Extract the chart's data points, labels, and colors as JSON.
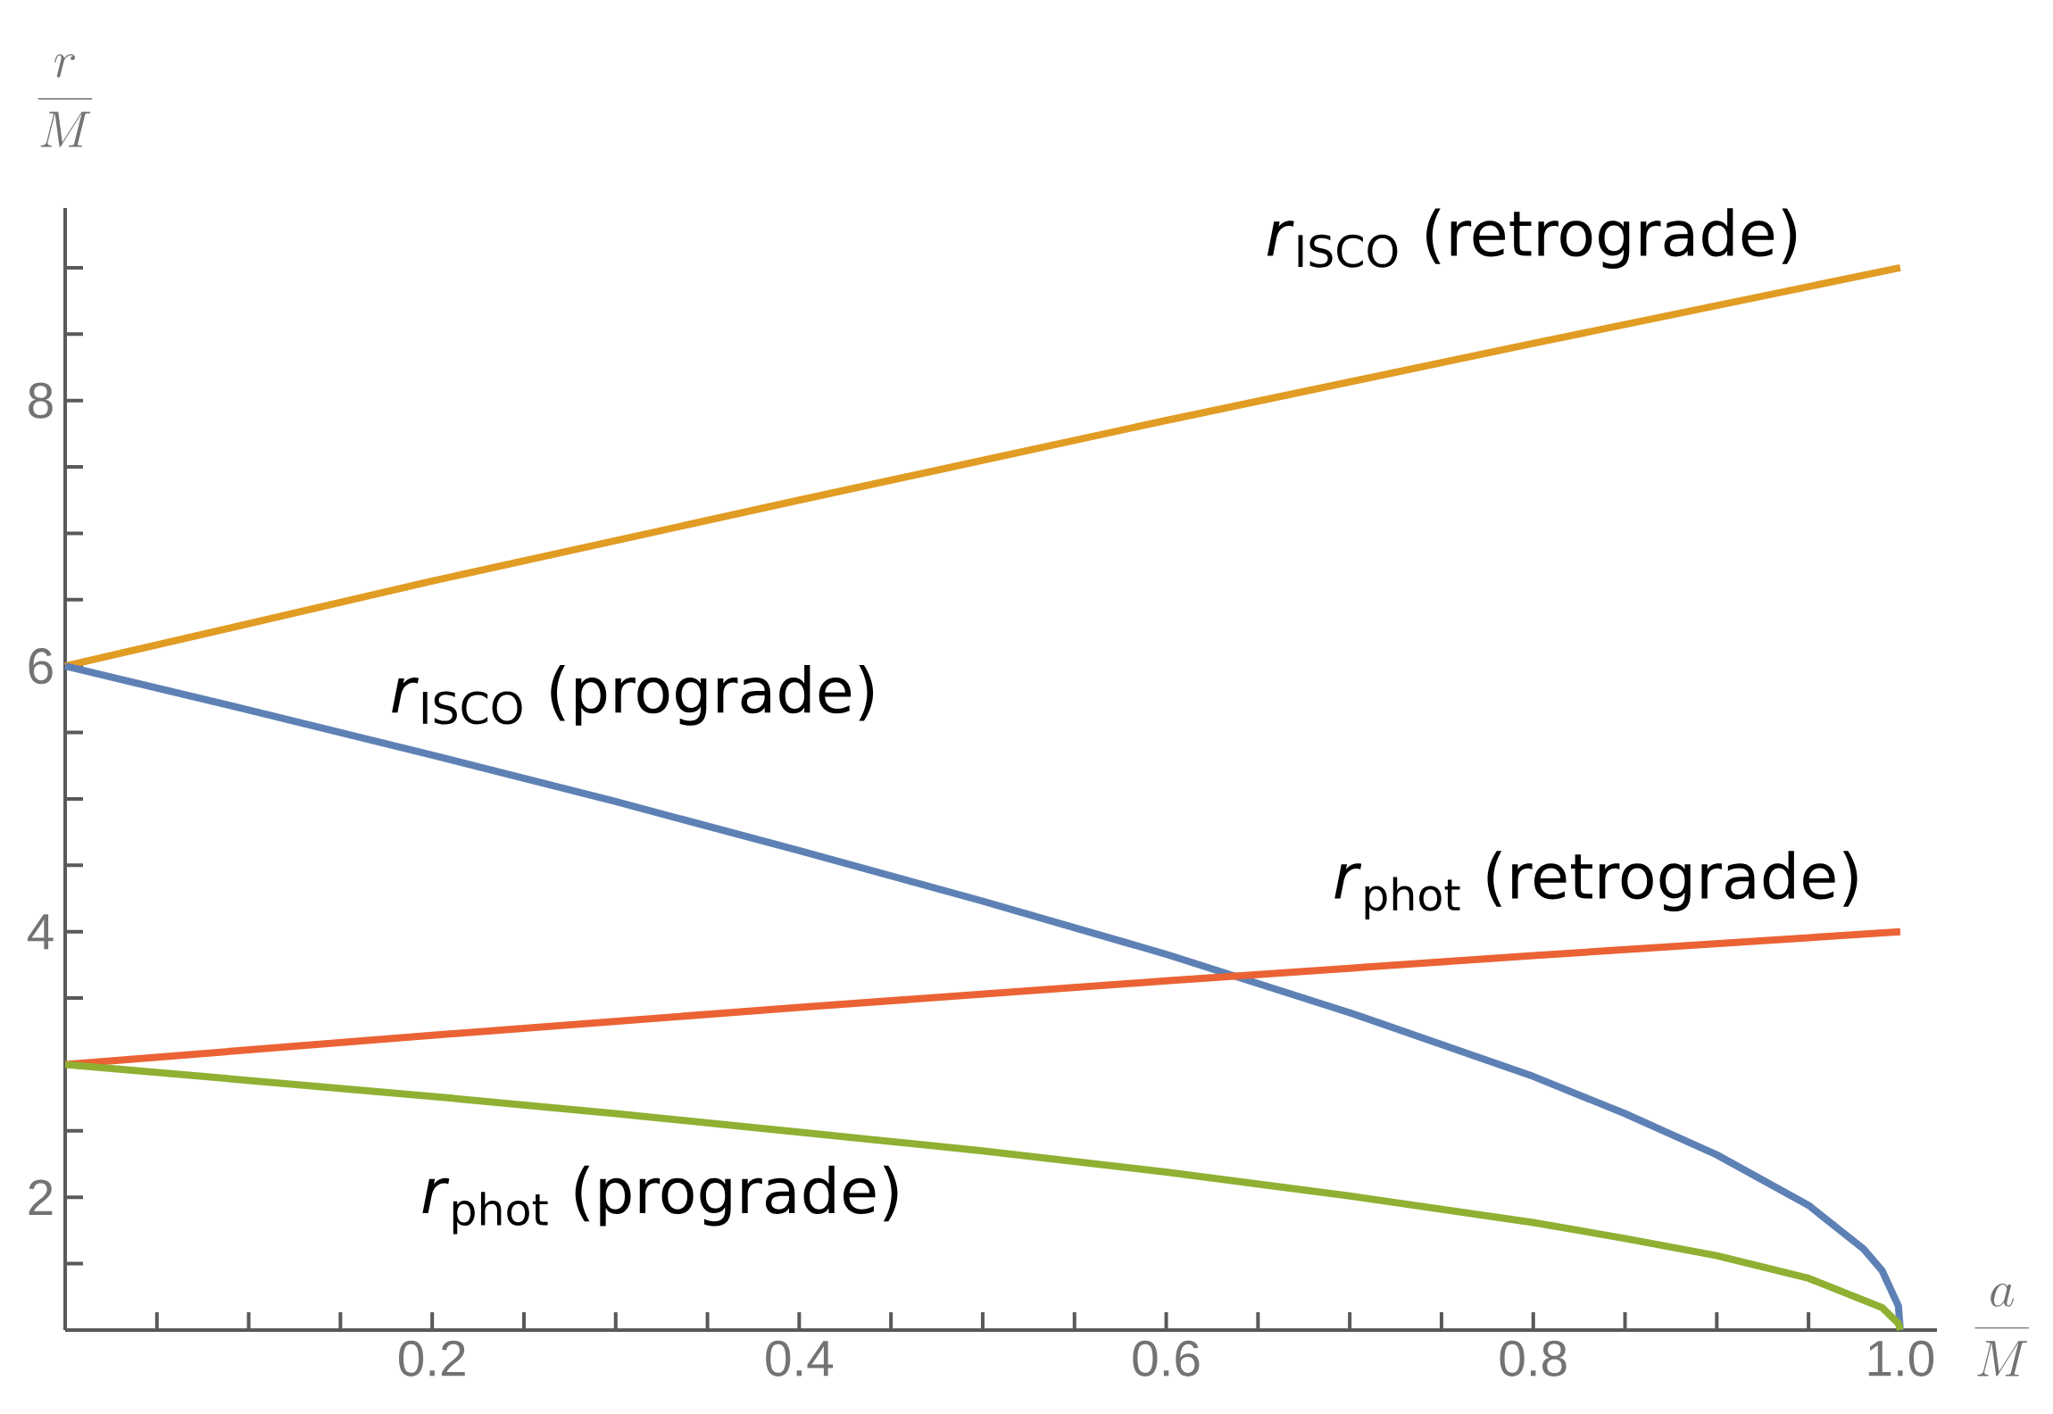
{
  "chart_data": {
    "type": "line",
    "xlabel": "\\frac{a}{M}",
    "ylabel": "\\frac{r}{M}",
    "xlim": [
      0,
      1.02
    ],
    "ylim": [
      1,
      9.45
    ],
    "xticks": [
      0.2,
      0.4,
      0.6,
      0.8,
      {
        "value": 1.0,
        "label": "1.0"
      }
    ],
    "yticks": [
      2,
      4,
      6,
      8
    ],
    "marker": "none",
    "line_style": "solid",
    "series": [
      {
        "name": "*r*$_{ISCO}$ (retrograde)",
        "color": "#e19c24",
        "x": [
          0,
          0.2,
          0.4,
          0.6,
          0.8,
          1.0
        ],
        "values": [
          6,
          6.64,
          7.25,
          7.85,
          8.43,
          9
        ]
      },
      {
        "name": "*r*$_{ISCO}$ (prograde)",
        "color": "#5e81b5",
        "x": [
          0,
          0.1,
          0.2,
          0.3,
          0.4,
          0.5,
          0.6,
          0.7,
          0.8,
          0.85,
          0.9,
          0.95,
          0.98,
          0.99,
          0.999,
          1.0
        ],
        "values": [
          6,
          5.67,
          5.33,
          4.98,
          4.61,
          4.23,
          3.83,
          3.39,
          2.91,
          2.63,
          2.32,
          1.94,
          1.61,
          1.45,
          1.18,
          1
        ]
      },
      {
        "name": "*r*$_{phot}$ (retrograde)",
        "color": "#eb6235",
        "x": [
          0,
          0.2,
          0.4,
          0.6,
          0.8,
          1.0
        ],
        "values": [
          3,
          3.22,
          3.43,
          3.63,
          3.82,
          4
        ]
      },
      {
        "name": "*r*$_{phot}$ (prograde)",
        "color": "#8fb032",
        "x": [
          0,
          0.1,
          0.2,
          0.3,
          0.4,
          0.5,
          0.6,
          0.7,
          0.8,
          0.85,
          0.9,
          0.95,
          0.99,
          0.999,
          1.0
        ],
        "values": [
          3,
          2.88,
          2.76,
          2.63,
          2.49,
          2.35,
          2.19,
          2.01,
          1.81,
          1.69,
          1.56,
          1.39,
          1.17,
          1.05,
          1
        ]
      }
    ]
  }
}
